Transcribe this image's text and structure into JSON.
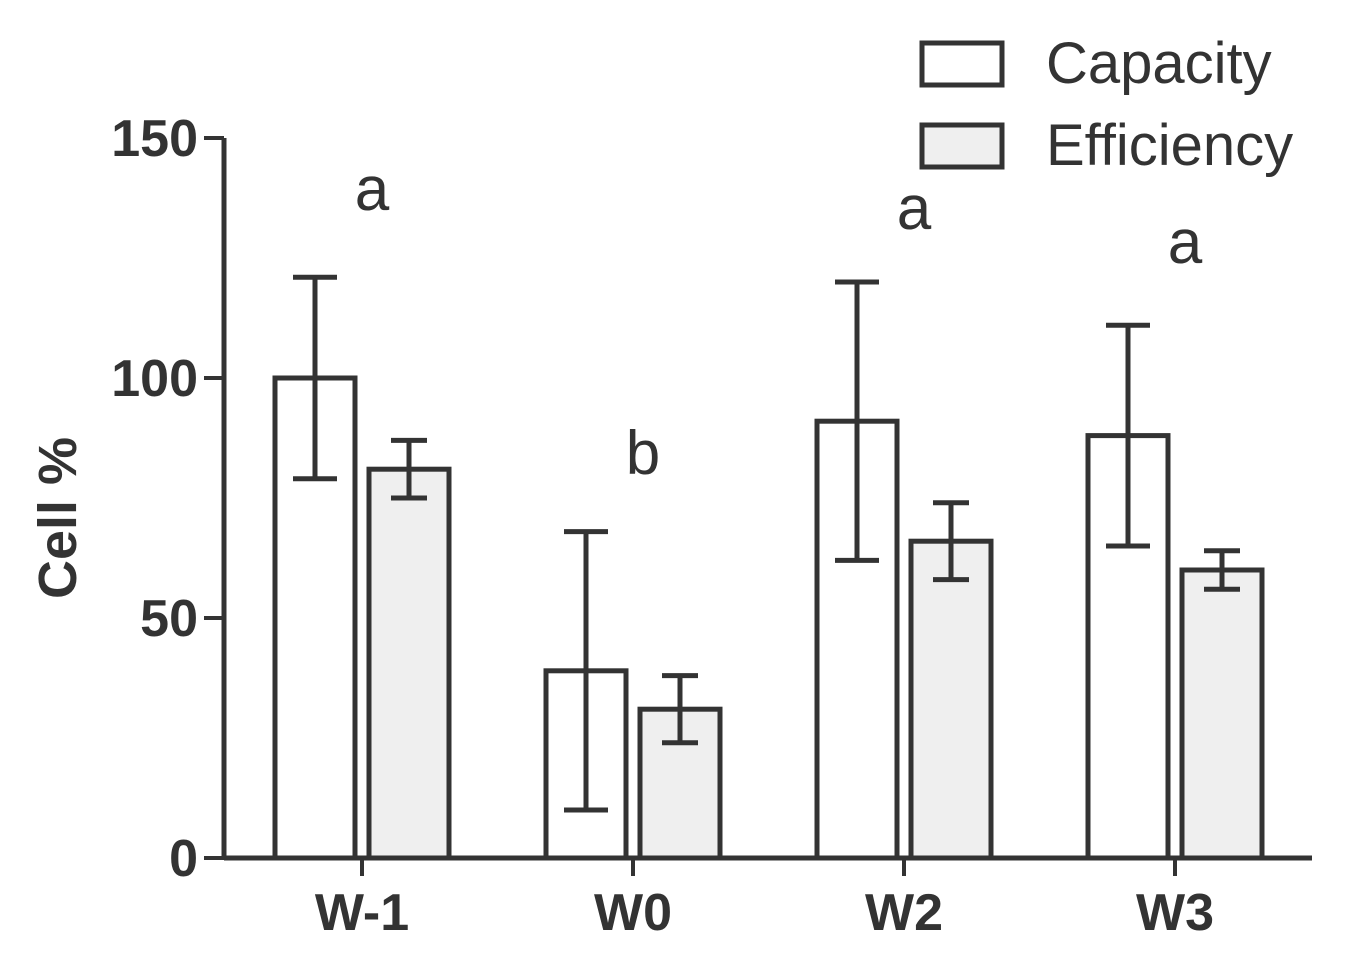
{
  "chart_data": {
    "type": "bar",
    "title": "",
    "xlabel": "",
    "ylabel": "Cell %",
    "ylim": [
      0,
      150
    ],
    "yticks": [
      0,
      50,
      100,
      150
    ],
    "categories": [
      "W-1",
      "W0",
      "W2",
      "W3"
    ],
    "series": [
      {
        "name": "Capacity",
        "color": "#ffffff",
        "values": [
          100,
          39,
          91,
          88
        ],
        "errors": [
          21,
          29,
          29,
          23
        ]
      },
      {
        "name": "Efficiency",
        "color": "#efefef",
        "values": [
          81,
          31,
          66,
          60
        ],
        "errors": [
          6,
          7,
          8,
          4
        ]
      }
    ],
    "annotations": [
      {
        "category": "W-1",
        "text": "a",
        "y": 135
      },
      {
        "category": "W0",
        "text": "b",
        "y": 80
      },
      {
        "category": "W2",
        "text": "a",
        "y": 131
      },
      {
        "category": "W3",
        "text": "a",
        "y": 124
      }
    ],
    "legend_position": "top-right",
    "grid": false
  }
}
